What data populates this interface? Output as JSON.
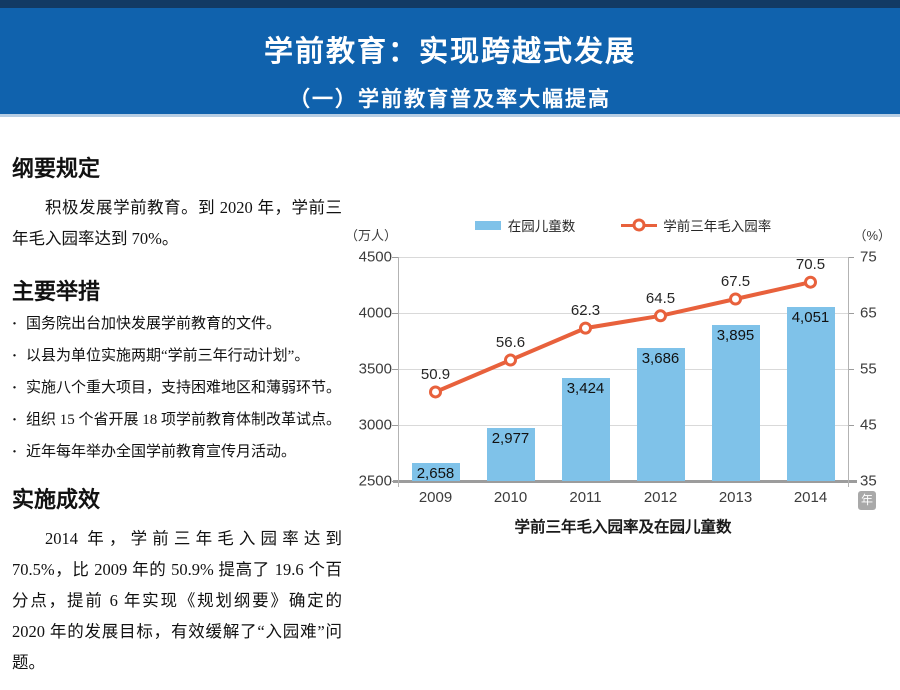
{
  "header": {
    "title": "学前教育：实现跨越式发展",
    "subtitle": "（一）学前教育普及率大幅提高"
  },
  "theme": {
    "header_bg": "#1062ad",
    "header_top_edge": "#123a64",
    "header_underline": "#b7cde3",
    "bar_color": "#7fc2e9",
    "line_color": "#e8613c",
    "grid_color": "#d9d9d9",
    "axis_color": "#9c9c9c",
    "badge_bg": "#a9a9a9"
  },
  "sections": {
    "outline": {
      "heading": "纲要规定",
      "body": "积极发展学前教育。到 2020 年，学前三年毛入园率达到 70%。"
    },
    "measures": {
      "heading": "主要举措",
      "bullets": [
        "国务院出台加快发展学前教育的文件。",
        "以县为单位实施两期“学前三年行动计划”。",
        "实施八个重大项目，支持困难地区和薄弱环节。",
        "组织 15 个省开展 18 项学前教育体制改革试点。",
        "近年每年举办全国学前教育宣传月活动。"
      ]
    },
    "results": {
      "heading": "实施成效",
      "body": "2014 年，学前三年毛入园率达到 70.5%，比 2009 年的 50.9% 提高了 19.6 个百分点，提前 6 年实现《规划纲要》确定的 2020 年的发展目标，有效缓解了“入园难”问题。"
    }
  },
  "chart_data": {
    "type": "combo",
    "title": "学前三年毛入园率及在园儿童数",
    "categories": [
      "2009",
      "2010",
      "2011",
      "2012",
      "2013",
      "2014"
    ],
    "x_axis_badge": "年",
    "legend_position": "top",
    "grid": true,
    "left_axis": {
      "unit": "（万人）",
      "min": 2500,
      "max": 4500,
      "ticks": [
        2500,
        3000,
        3500,
        4000,
        4500
      ]
    },
    "right_axis": {
      "unit": "（%）",
      "min": 35,
      "max": 75,
      "ticks": [
        35,
        45,
        55,
        65,
        75
      ]
    },
    "series": [
      {
        "name": "在园儿童数",
        "type": "bar",
        "axis": "left",
        "color": "#7fc2e9",
        "values": [
          2658,
          2977,
          3424,
          3686,
          3895,
          4051
        ],
        "labels": [
          "2,658",
          "2,977",
          "3,424",
          "3,686",
          "3,895",
          "4,051"
        ]
      },
      {
        "name": "学前三年毛入园率",
        "type": "line",
        "axis": "right",
        "color": "#e8613c",
        "values": [
          50.9,
          56.6,
          62.3,
          64.5,
          67.5,
          70.5
        ],
        "labels": [
          "50.9",
          "56.6",
          "62.3",
          "64.5",
          "67.5",
          "70.5"
        ]
      }
    ]
  }
}
